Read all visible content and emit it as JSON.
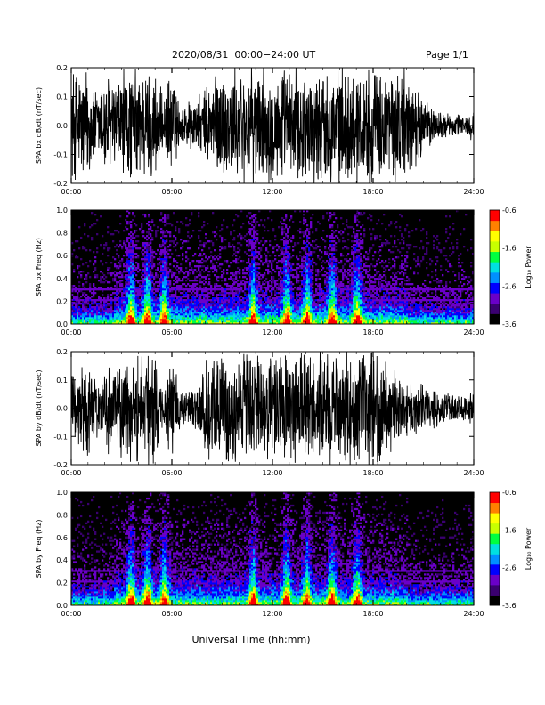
{
  "header": {
    "title": "2020/08/31  00:00−24:00 UT",
    "page": "Page 1/1"
  },
  "footer": {
    "xlabel": "Universal Time (hh:mm)"
  },
  "colors": {
    "foreground": "#000000",
    "background": "#ffffff",
    "colormap": [
      "#000000",
      "#3a0070",
      "#6a00c8",
      "#0000ff",
      "#0090ff",
      "#00e0e0",
      "#00ff40",
      "#c8ff00",
      "#ffff00",
      "#ff8000",
      "#ff0000"
    ]
  },
  "chart_data": [
    {
      "type": "line",
      "ylabel": "SPA bx dB/dt (nT/sec)",
      "x_ticks": [
        "00:00",
        "06:00",
        "12:00",
        "18:00",
        "24:00"
      ],
      "xlim_hours": [
        0,
        24
      ],
      "ylim": [
        -0.2,
        0.2
      ],
      "y_ticks": [
        "-0.2",
        "-0.1",
        "0.0",
        "0.1",
        "0.2"
      ],
      "envelope": {
        "x_hours": [
          0,
          0.5,
          1,
          1.5,
          2,
          2.5,
          3,
          3.5,
          4,
          4.5,
          5,
          5.5,
          6,
          6.5,
          7,
          7.5,
          8,
          8.5,
          9,
          9.5,
          10,
          10.5,
          11,
          11.5,
          12,
          12.5,
          13,
          13.5,
          14,
          14.5,
          15,
          15.5,
          16,
          16.5,
          17,
          17.5,
          18,
          18.5,
          19,
          19.5,
          20,
          20.5,
          21,
          21.5,
          22,
          22.5,
          23,
          23.5,
          24
        ],
        "amplitude": [
          0.2,
          0.2,
          0.2,
          0.12,
          0.2,
          0.15,
          0.2,
          0.2,
          0.2,
          0.2,
          0.2,
          0.09,
          0.2,
          0.06,
          0.1,
          0.09,
          0.13,
          0.2,
          0.2,
          0.2,
          0.2,
          0.2,
          0.2,
          0.2,
          0.2,
          0.2,
          0.2,
          0.2,
          0.2,
          0.2,
          0.2,
          0.2,
          0.2,
          0.2,
          0.2,
          0.2,
          0.2,
          0.2,
          0.2,
          0.2,
          0.2,
          0.15,
          0.1,
          0.07,
          0.05,
          0.04,
          0.04,
          0.04,
          0.05
        ]
      }
    },
    {
      "type": "heatmap",
      "ylabel": "SPA bx Freq (Hz)",
      "x_ticks": [
        "00:00",
        "06:00",
        "12:00",
        "18:00",
        "24:00"
      ],
      "xlim_hours": [
        0,
        24
      ],
      "ylim": [
        0.0,
        1.0
      ],
      "y_ticks": [
        "0.0",
        "0.2",
        "0.4",
        "0.6",
        "0.8",
        "1.0"
      ],
      "colorbar": {
        "label": "Log₁₀ Power",
        "range": [
          -3.6,
          -0.6
        ],
        "ticks": [
          "-0.6",
          "-1.6",
          "-2.6",
          "-3.6"
        ]
      },
      "bursts_hours": [
        3.5,
        4.5,
        5.5,
        10.8,
        12.8,
        14.0,
        15.5,
        17.0
      ],
      "horizontal_bands_hz": [
        0.2,
        0.3
      ]
    },
    {
      "type": "line",
      "ylabel": "SPA by dB/dt (nT/sec)",
      "x_ticks": [
        "00:00",
        "06:00",
        "12:00",
        "18:00",
        "24:00"
      ],
      "xlim_hours": [
        0,
        24
      ],
      "ylim": [
        -0.2,
        0.2
      ],
      "y_ticks": [
        "-0.2",
        "-0.1",
        "0.0",
        "0.1",
        "0.2"
      ],
      "envelope": {
        "x_hours": [
          0,
          0.5,
          1,
          1.5,
          2,
          2.5,
          3,
          3.5,
          4,
          4.5,
          5,
          5.5,
          6,
          6.5,
          7,
          7.5,
          8,
          8.5,
          9,
          9.5,
          10,
          10.5,
          11,
          11.5,
          12,
          12.5,
          13,
          13.5,
          14,
          14.5,
          15,
          15.5,
          16,
          16.5,
          17,
          17.5,
          18,
          18.5,
          19,
          19.5,
          20,
          20.5,
          21,
          21.5,
          22,
          22.5,
          23,
          23.5,
          24
        ],
        "amplitude": [
          0.12,
          0.13,
          0.2,
          0.1,
          0.15,
          0.15,
          0.2,
          0.2,
          0.2,
          0.2,
          0.2,
          0.06,
          0.2,
          0.06,
          0.08,
          0.08,
          0.2,
          0.2,
          0.2,
          0.2,
          0.2,
          0.2,
          0.2,
          0.2,
          0.2,
          0.2,
          0.2,
          0.2,
          0.2,
          0.2,
          0.2,
          0.2,
          0.2,
          0.2,
          0.2,
          0.2,
          0.2,
          0.2,
          0.15,
          0.12,
          0.1,
          0.1,
          0.08,
          0.07,
          0.06,
          0.05,
          0.05,
          0.05,
          0.07
        ]
      }
    },
    {
      "type": "heatmap",
      "ylabel": "SPA by Freq (Hz)",
      "x_ticks": [
        "00:00",
        "06:00",
        "12:00",
        "18:00",
        "24:00"
      ],
      "xlim_hours": [
        0,
        24
      ],
      "ylim": [
        0.0,
        1.0
      ],
      "y_ticks": [
        "0.0",
        "0.2",
        "0.4",
        "0.6",
        "0.8",
        "1.0"
      ],
      "colorbar": {
        "label": "Log₁₀ Power",
        "range": [
          -3.6,
          -0.6
        ],
        "ticks": [
          "-0.6",
          "-1.6",
          "-2.6",
          "-3.6"
        ]
      },
      "bursts_hours": [
        3.5,
        4.5,
        5.5,
        10.8,
        12.8,
        14.0,
        15.5,
        17.0
      ],
      "horizontal_bands_hz": [
        0.2,
        0.3
      ]
    }
  ]
}
